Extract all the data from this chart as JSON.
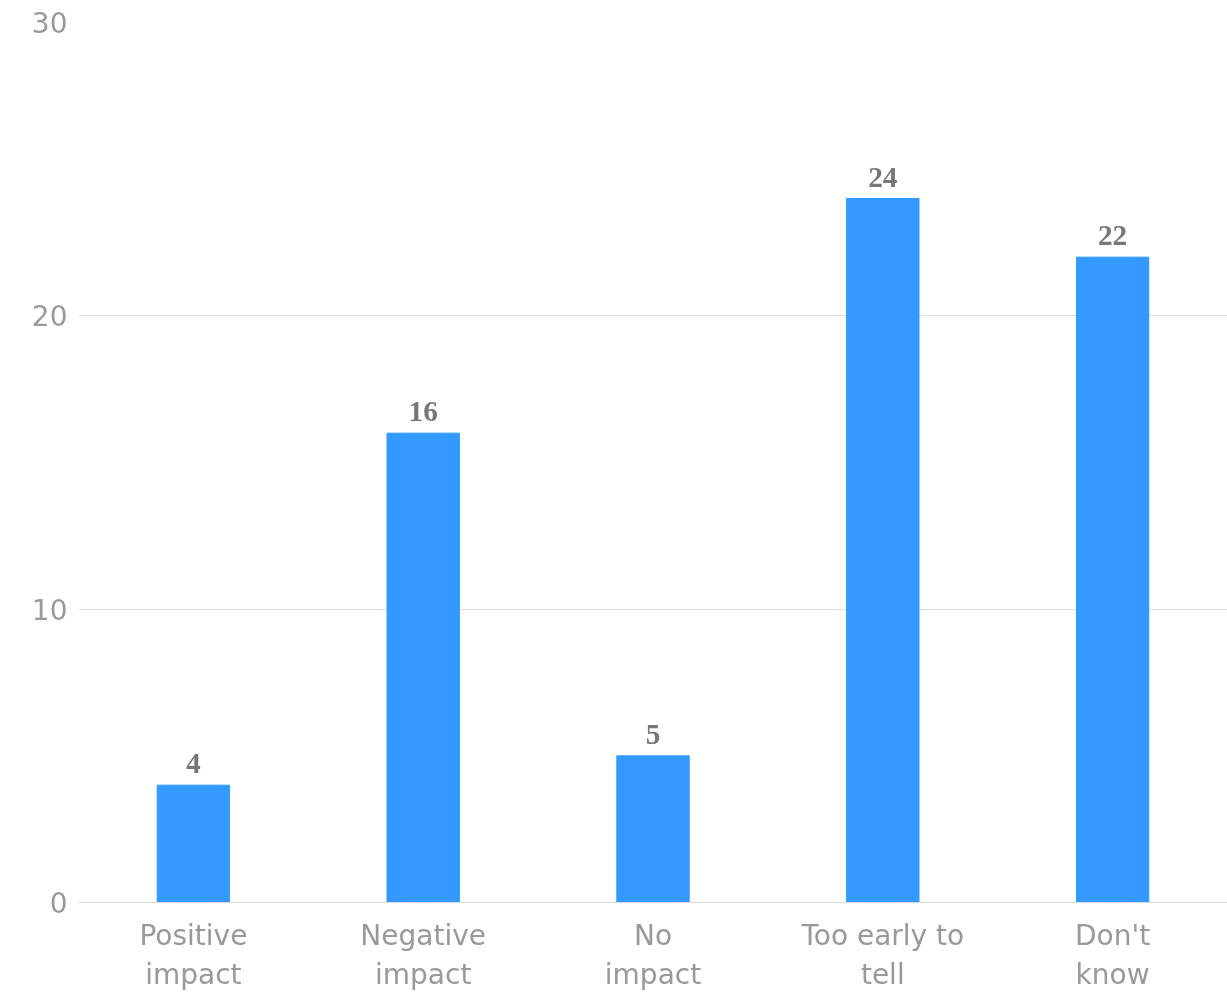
{
  "chart_data": {
    "type": "bar",
    "categories": [
      "Positive\nimpact",
      "Negative\nimpact",
      "No\nimpact",
      "Too early to\ntell",
      "Don't\nknow"
    ],
    "values": [
      4,
      16,
      5,
      24,
      22
    ],
    "color": "#3399ff",
    "ylim": [
      0,
      30
    ],
    "yticks": [
      0,
      10,
      20,
      30
    ],
    "grid": "y",
    "data_labels": true
  }
}
